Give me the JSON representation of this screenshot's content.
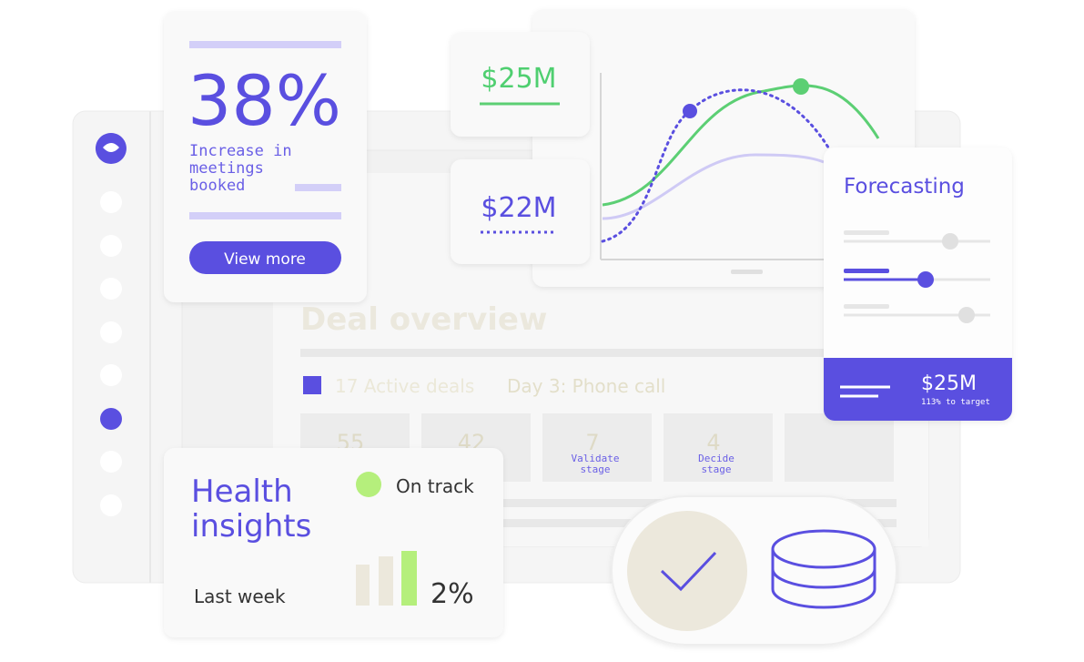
{
  "meetings_card": {
    "stat": "38%",
    "description_lines": [
      "Increase in",
      "meetings",
      "booked"
    ],
    "button": "View more"
  },
  "chart_cards": [
    {
      "amount": "$25M"
    },
    {
      "amount": "$22M"
    }
  ],
  "forecasting_card": {
    "title": "Forecasting",
    "amount": "$25M",
    "target": "113% to target"
  },
  "deal_overview": {
    "title": "Deal overview",
    "active_deals": "17 Active deals",
    "step": "Day 3: Phone call",
    "stats": [
      {
        "value": "55",
        "label_lines": []
      },
      {
        "value": "42",
        "label_lines": []
      },
      {
        "value": "7",
        "label_lines": [
          "Validate",
          "stage"
        ]
      },
      {
        "value": "4",
        "label_lines": [
          "Decide",
          "stage"
        ]
      }
    ]
  },
  "health_card": {
    "title_lines": [
      "Health",
      "insights"
    ],
    "status": "On track",
    "period": "Last week",
    "change": "2%"
  }
}
